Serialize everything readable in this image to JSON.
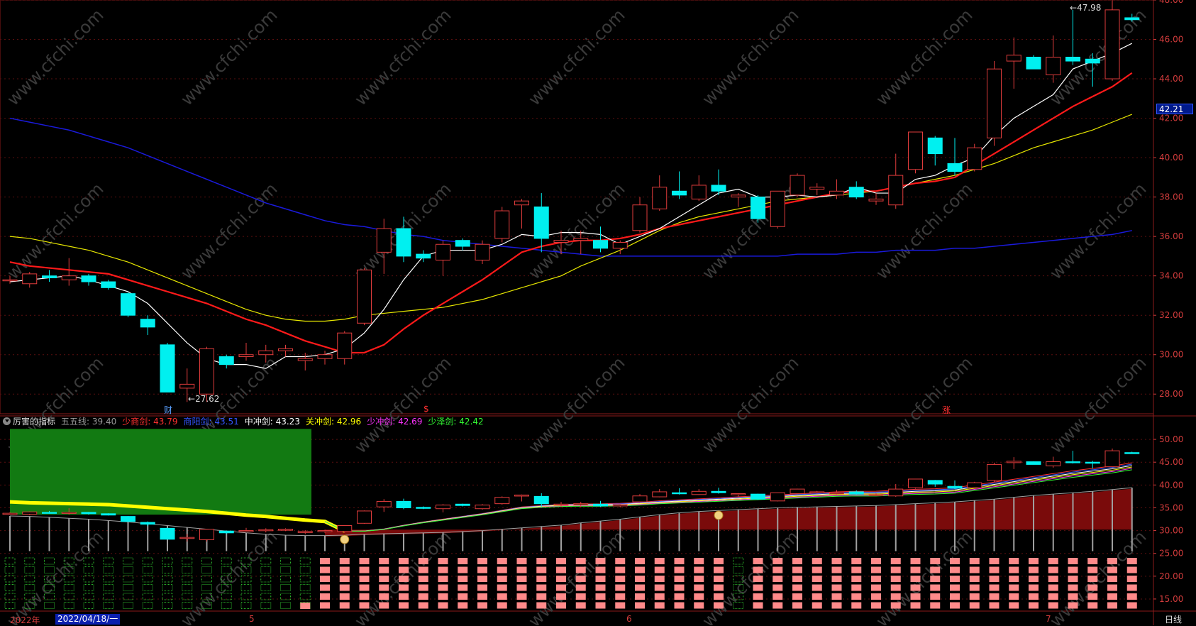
{
  "main_chart": {
    "high_annotation": "47.98",
    "low_annotation": "27.62",
    "current_price_tag": "42.21",
    "y_ticks": [
      "48.00",
      "46.00",
      "44.00",
      "42.00",
      "40.00",
      "38.00",
      "36.00",
      "34.00",
      "32.00",
      "30.00",
      "28.00"
    ],
    "event_markers": [
      {
        "text": "财",
        "color": "#5aa0ff"
      },
      {
        "text": "$",
        "color": "#ff3030"
      },
      {
        "text": "涨",
        "color": "#ff3030"
      }
    ]
  },
  "indicator": {
    "name": "厉害的指标",
    "fields": [
      {
        "label": "五五线:",
        "value": "39.40",
        "color": "#999999"
      },
      {
        "label": "少商剑:",
        "value": "43.79",
        "color": "#ff3030"
      },
      {
        "label": "商阳剑:",
        "value": "43.51",
        "color": "#3355ff"
      },
      {
        "label": "中冲剑:",
        "value": "43.23",
        "color": "#ffffff"
      },
      {
        "label": "关冲剑:",
        "value": "42.96",
        "color": "#ffff00"
      },
      {
        "label": "少冲剑:",
        "value": "42.69",
        "color": "#ff33ff"
      },
      {
        "label": "少泽剑:",
        "value": "42.42",
        "color": "#33ff33"
      }
    ],
    "y_ticks": [
      "50.00",
      "45.00",
      "40.00",
      "35.00",
      "30.00",
      "25.00",
      "20.00",
      "15.00"
    ]
  },
  "time_axis": {
    "year_label": "2022年",
    "cursor_date": "2022/04/18/一",
    "month_labels": [
      "5",
      "6",
      "7"
    ],
    "period": "日线"
  },
  "watermark": "www.cfchi.com",
  "colors": {
    "up": "#e03c3c",
    "down": "#00f0f0",
    "ma5": "#ffffff",
    "ma10": "#ff1a1a",
    "ma20": "#e6e600",
    "ma60": "#1a1adc",
    "axis": "#d23c3c"
  },
  "chart_data": {
    "type": "candlestick",
    "y_range": [
      27,
      48
    ],
    "candles": [
      {
        "o": 33.8,
        "h": 34.0,
        "l": 33.6,
        "c": 33.8
      },
      {
        "o": 33.6,
        "h": 34.2,
        "l": 33.4,
        "c": 34.1
      },
      {
        "o": 34.0,
        "h": 34.3,
        "l": 33.7,
        "c": 33.9
      },
      {
        "o": 33.8,
        "h": 34.9,
        "l": 33.5,
        "c": 34.0
      },
      {
        "o": 34.0,
        "h": 34.1,
        "l": 33.5,
        "c": 33.7
      },
      {
        "o": 33.7,
        "h": 33.8,
        "l": 33.3,
        "c": 33.4
      },
      {
        "o": 33.1,
        "h": 33.2,
        "l": 31.9,
        "c": 32.0
      },
      {
        "o": 31.8,
        "h": 32.0,
        "l": 31.0,
        "c": 31.4
      },
      {
        "o": 30.5,
        "h": 30.6,
        "l": 28.1,
        "c": 28.1
      },
      {
        "o": 28.3,
        "h": 29.3,
        "l": 27.6,
        "c": 28.5
      },
      {
        "o": 28.0,
        "h": 30.4,
        "l": 27.6,
        "c": 30.3
      },
      {
        "o": 29.9,
        "h": 30.0,
        "l": 29.3,
        "c": 29.5
      },
      {
        "o": 29.9,
        "h": 30.6,
        "l": 29.7,
        "c": 30.0
      },
      {
        "o": 30.0,
        "h": 30.5,
        "l": 29.6,
        "c": 30.2
      },
      {
        "o": 30.2,
        "h": 30.5,
        "l": 29.9,
        "c": 30.3
      },
      {
        "o": 29.7,
        "h": 30.1,
        "l": 29.2,
        "c": 29.8
      },
      {
        "o": 29.8,
        "h": 30.2,
        "l": 29.5,
        "c": 30.0
      },
      {
        "o": 29.8,
        "h": 31.2,
        "l": 29.5,
        "c": 31.1
      },
      {
        "o": 31.6,
        "h": 34.4,
        "l": 31.5,
        "c": 34.3
      },
      {
        "o": 35.2,
        "h": 36.9,
        "l": 34.1,
        "c": 36.4
      },
      {
        "o": 36.4,
        "h": 37.0,
        "l": 34.7,
        "c": 35.0
      },
      {
        "o": 35.1,
        "h": 35.3,
        "l": 34.7,
        "c": 34.9
      },
      {
        "o": 34.8,
        "h": 35.8,
        "l": 34.0,
        "c": 35.6
      },
      {
        "o": 35.8,
        "h": 35.9,
        "l": 35.3,
        "c": 35.5
      },
      {
        "o": 34.8,
        "h": 35.8,
        "l": 34.6,
        "c": 35.6
      },
      {
        "o": 35.9,
        "h": 37.5,
        "l": 35.7,
        "c": 37.3
      },
      {
        "o": 37.6,
        "h": 37.9,
        "l": 36.4,
        "c": 37.8
      },
      {
        "o": 37.5,
        "h": 38.2,
        "l": 35.2,
        "c": 35.9
      },
      {
        "o": 35.7,
        "h": 36.3,
        "l": 35.1,
        "c": 35.8
      },
      {
        "o": 35.8,
        "h": 36.3,
        "l": 35.1,
        "c": 35.9
      },
      {
        "o": 35.8,
        "h": 36.5,
        "l": 35.2,
        "c": 35.4
      },
      {
        "o": 35.4,
        "h": 35.8,
        "l": 35.1,
        "c": 35.7
      },
      {
        "o": 36.3,
        "h": 38.0,
        "l": 36.2,
        "c": 37.6
      },
      {
        "o": 37.4,
        "h": 39.1,
        "l": 37.3,
        "c": 38.5
      },
      {
        "o": 38.3,
        "h": 39.3,
        "l": 37.9,
        "c": 38.1
      },
      {
        "o": 37.9,
        "h": 39.1,
        "l": 37.8,
        "c": 38.6
      },
      {
        "o": 38.6,
        "h": 39.4,
        "l": 38.1,
        "c": 38.3
      },
      {
        "o": 38.0,
        "h": 38.2,
        "l": 37.5,
        "c": 38.1
      },
      {
        "o": 38.0,
        "h": 38.1,
        "l": 36.7,
        "c": 36.9
      },
      {
        "o": 36.5,
        "h": 38.2,
        "l": 36.4,
        "c": 38.3
      },
      {
        "o": 38.1,
        "h": 39.2,
        "l": 38.0,
        "c": 39.1
      },
      {
        "o": 38.4,
        "h": 38.7,
        "l": 38.1,
        "c": 38.5
      },
      {
        "o": 38.1,
        "h": 38.9,
        "l": 37.9,
        "c": 38.3
      },
      {
        "o": 38.5,
        "h": 38.8,
        "l": 37.9,
        "c": 38.0
      },
      {
        "o": 37.8,
        "h": 38.2,
        "l": 37.6,
        "c": 37.9
      },
      {
        "o": 37.6,
        "h": 40.2,
        "l": 37.4,
        "c": 39.1
      },
      {
        "o": 39.4,
        "h": 41.3,
        "l": 39.2,
        "c": 41.3
      },
      {
        "o": 41.0,
        "h": 41.1,
        "l": 39.6,
        "c": 40.2
      },
      {
        "o": 39.7,
        "h": 41.0,
        "l": 39.1,
        "c": 39.3
      },
      {
        "o": 39.4,
        "h": 40.7,
        "l": 39.3,
        "c": 40.5
      },
      {
        "o": 41.0,
        "h": 44.9,
        "l": 40.6,
        "c": 44.5
      },
      {
        "o": 44.9,
        "h": 46.1,
        "l": 43.5,
        "c": 45.2
      },
      {
        "o": 45.1,
        "h": 45.2,
        "l": 44.5,
        "c": 44.5
      },
      {
        "o": 44.2,
        "h": 46.2,
        "l": 43.8,
        "c": 45.1
      },
      {
        "o": 45.1,
        "h": 47.5,
        "l": 44.7,
        "c": 44.9
      },
      {
        "o": 45.0,
        "h": 45.3,
        "l": 43.6,
        "c": 44.8
      },
      {
        "o": 44.0,
        "h": 47.98,
        "l": 43.9,
        "c": 47.5
      },
      {
        "o": 47.1,
        "h": 47.3,
        "l": 46.9,
        "c": 47.0
      }
    ],
    "ma5": [
      33.7,
      33.8,
      33.9,
      34.0,
      33.8,
      33.5,
      33.2,
      32.6,
      31.6,
      30.6,
      29.8,
      29.5,
      29.5,
      29.3,
      29.9,
      29.9,
      30.0,
      30.3,
      31.1,
      32.3,
      33.8,
      35.0,
      35.3,
      35.3,
      35.3,
      35.6,
      36.1,
      36.0,
      36.2,
      36.2,
      36.1,
      35.6,
      36.0,
      36.4,
      37.0,
      37.6,
      38.2,
      38.4,
      38.0,
      38.0,
      38.1,
      38.0,
      38.1,
      38.5,
      38.2,
      38.2,
      38.9,
      39.1,
      39.6,
      40.0,
      41.1,
      42.0,
      42.6,
      43.2,
      44.5,
      44.9,
      45.3,
      45.8
    ],
    "ma10": [
      34.7,
      34.5,
      34.4,
      34.3,
      34.2,
      34.1,
      33.8,
      33.5,
      33.2,
      32.9,
      32.6,
      32.2,
      31.8,
      31.5,
      31.1,
      30.7,
      30.4,
      30.1,
      30.1,
      30.5,
      31.3,
      32.0,
      32.6,
      33.2,
      33.8,
      34.5,
      35.2,
      35.5,
      35.7,
      35.8,
      35.8,
      35.9,
      36.1,
      36.4,
      36.6,
      36.8,
      37.0,
      37.2,
      37.4,
      37.6,
      37.8,
      38.0,
      38.2,
      38.3,
      38.3,
      38.5,
      38.7,
      38.8,
      39.0,
      39.6,
      40.2,
      40.8,
      41.4,
      42.0,
      42.6,
      43.1,
      43.6,
      44.3
    ],
    "ma20": [
      36.0,
      35.9,
      35.7,
      35.5,
      35.3,
      35.0,
      34.7,
      34.3,
      33.9,
      33.5,
      33.1,
      32.7,
      32.3,
      32.0,
      31.8,
      31.7,
      31.7,
      31.8,
      32.0,
      32.1,
      32.2,
      32.3,
      32.4,
      32.6,
      32.8,
      33.1,
      33.4,
      33.7,
      34.0,
      34.5,
      34.9,
      35.3,
      35.8,
      36.3,
      36.7,
      37.0,
      37.2,
      37.4,
      37.6,
      37.8,
      37.9,
      38.0,
      38.1,
      38.2,
      38.3,
      38.5,
      38.7,
      38.9,
      39.1,
      39.4,
      39.7,
      40.1,
      40.5,
      40.8,
      41.1,
      41.4,
      41.8,
      42.2
    ],
    "ma60": [
      42.0,
      41.8,
      41.6,
      41.4,
      41.1,
      40.8,
      40.5,
      40.1,
      39.7,
      39.3,
      38.9,
      38.5,
      38.1,
      37.7,
      37.4,
      37.1,
      36.8,
      36.6,
      36.5,
      36.3,
      36.1,
      36.0,
      35.8,
      35.7,
      35.6,
      35.5,
      35.4,
      35.3,
      35.2,
      35.1,
      35.0,
      35.0,
      35.0,
      35.0,
      35.0,
      35.0,
      35.0,
      35.0,
      35.0,
      35.0,
      35.1,
      35.1,
      35.1,
      35.2,
      35.2,
      35.3,
      35.3,
      35.3,
      35.4,
      35.4,
      35.5,
      35.6,
      35.7,
      35.8,
      35.9,
      36.0,
      36.1,
      36.3
    ]
  }
}
